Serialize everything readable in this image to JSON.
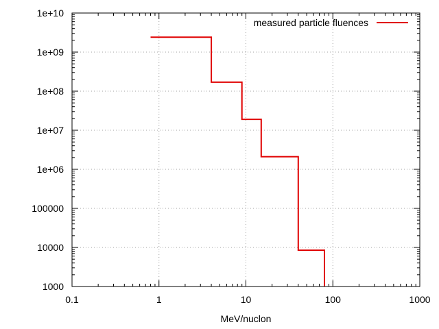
{
  "chart_data": {
    "type": "line",
    "title": "",
    "xlabel": "MeV/nuclon",
    "ylabel": "",
    "x_scale": "log",
    "y_scale": "log",
    "xlim": [
      0.1,
      1000
    ],
    "ylim": [
      1000,
      10000000000
    ],
    "grid": true,
    "legend_position": "top-right",
    "x_ticks": [
      {
        "value": 0.1,
        "label": "0.1"
      },
      {
        "value": 1,
        "label": "1"
      },
      {
        "value": 10,
        "label": "10"
      },
      {
        "value": 100,
        "label": "100"
      },
      {
        "value": 1000,
        "label": "1000"
      }
    ],
    "y_ticks": [
      {
        "value": 1000,
        "label": "1000"
      },
      {
        "value": 10000,
        "label": "10000"
      },
      {
        "value": 100000,
        "label": "100000"
      },
      {
        "value": 1000000,
        "label": "1e+06"
      },
      {
        "value": 10000000,
        "label": "1e+07"
      },
      {
        "value": 100000000,
        "label": "1e+08"
      },
      {
        "value": 1000000000,
        "label": "1e+09"
      },
      {
        "value": 10000000000,
        "label": "1e+10"
      }
    ],
    "series": [
      {
        "name": "measured particle fluences",
        "color": "#e00000",
        "style": "step",
        "x": [
          0.8,
          4,
          4,
          9,
          9,
          15,
          15,
          40,
          40,
          80,
          80
        ],
        "y": [
          2400000000,
          2400000000,
          170000000,
          170000000,
          19000000,
          19000000,
          2100000,
          2100000,
          8500,
          8500,
          1000
        ]
      }
    ]
  }
}
